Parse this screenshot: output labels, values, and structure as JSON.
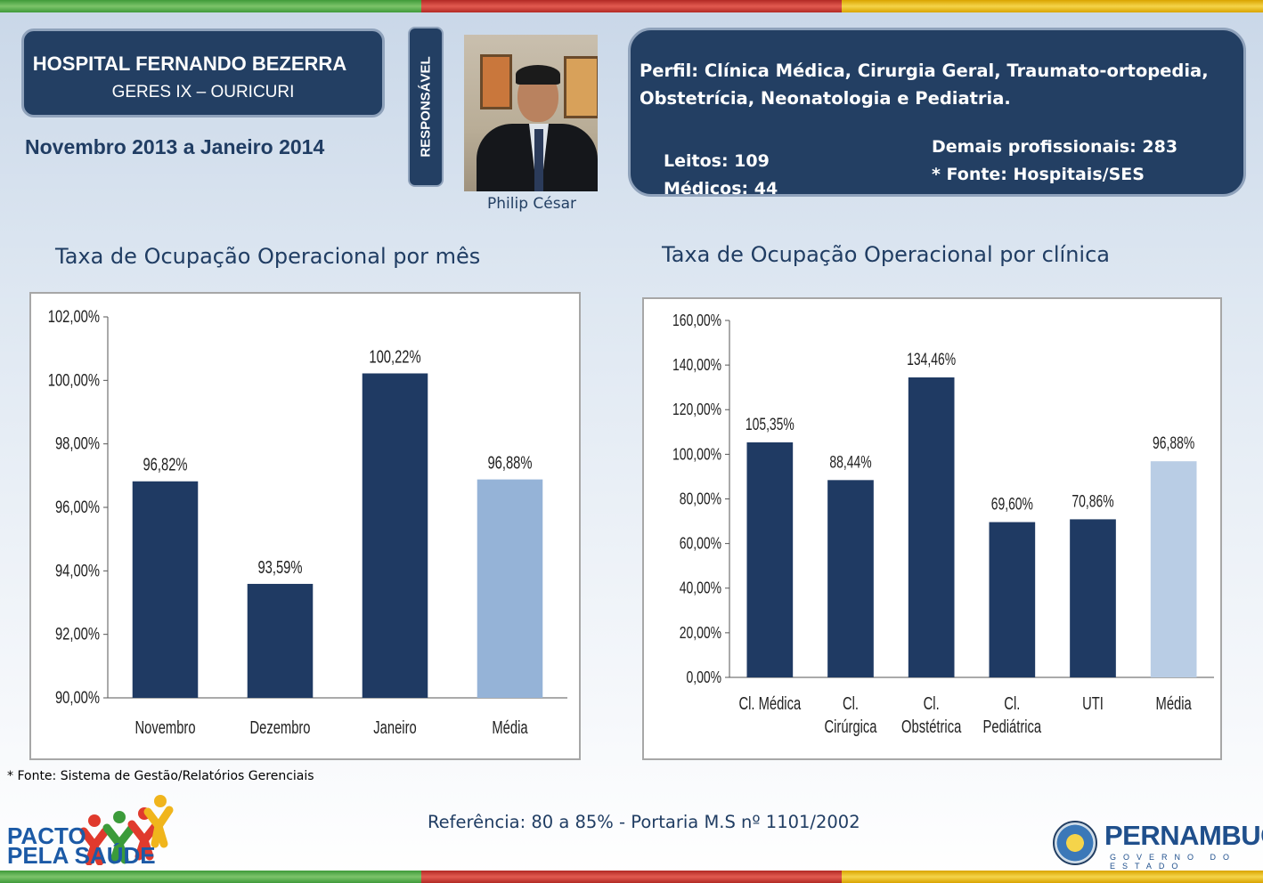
{
  "header": {
    "hospital_name": "HOSPITAL FERNANDO BEZERRA",
    "regional": "GERES IX – OURICURI",
    "period": "Novembro 2013 a Janeiro 2014",
    "responsavel_label": "RESPONSÁVEL",
    "responsavel_name": "Philip César"
  },
  "profile": {
    "perfil": "Perfil: Clínica Médica, Cirurgia Geral, Traumato-ortopedia, Obstetrícia, Neonatologia e Pediatria.",
    "leitos": "Leitos: 109",
    "medicos": "Médicos: 44",
    "demais": "Demais profissionais: 283",
    "fonte": "* Fonte: Hospitais/SES"
  },
  "titles": {
    "monthly": "Taxa de Ocupação Operacional por mês",
    "clinic": "Taxa de Ocupação Operacional por clínica"
  },
  "footer": {
    "source": "* Fonte: Sistema de Gestão/Relatórios Gerenciais",
    "reference": "Referência: 80 a 85% - Portaria M.S nº 1101/2002",
    "pacto_line1": "PACTO",
    "pacto_line2": "PELA SAÚDE",
    "pe_name": "PERNAMBUCO",
    "pe_sub": "GOVERNO DO ESTADO"
  },
  "colors": {
    "dark_bar": "#1f3a63",
    "light_bar_month": "#95b3d7",
    "light_bar_clinic": "#b9cde5"
  },
  "chart_data": [
    {
      "type": "bar",
      "title": "Taxa de Ocupação Operacional por mês",
      "categories": [
        [
          "Novembro"
        ],
        [
          "Dezembro"
        ],
        [
          "Janeiro"
        ],
        [
          "Média"
        ]
      ],
      "values": [
        96.82,
        93.59,
        100.22,
        96.88
      ],
      "labels": [
        "96,82%",
        "93,59%",
        "100,22%",
        "96,88%"
      ],
      "highlight": [
        false,
        false,
        false,
        true
      ],
      "ylim": [
        90,
        102
      ],
      "ticks": [
        90,
        92,
        94,
        96,
        98,
        100,
        102
      ],
      "tick_labels": [
        "90,00%",
        "92,00%",
        "94,00%",
        "96,00%",
        "98,00%",
        "100,00%",
        "102,00%"
      ],
      "xlabel": "",
      "ylabel": "",
      "grid": false
    },
    {
      "type": "bar",
      "title": "Taxa de Ocupação Operacional por clínica",
      "categories": [
        [
          "Cl. Médica"
        ],
        [
          "Cl.",
          "Cirúrgica"
        ],
        [
          "Cl.",
          "Obstétrica"
        ],
        [
          "Cl.",
          "Pediátrica"
        ],
        [
          "UTI"
        ],
        [
          "Média"
        ]
      ],
      "values": [
        105.35,
        88.44,
        134.46,
        69.6,
        70.86,
        96.88
      ],
      "labels": [
        "105,35%",
        "88,44%",
        "134,46%",
        "69,60%",
        "70,86%",
        "96,88%"
      ],
      "highlight": [
        false,
        false,
        false,
        false,
        false,
        true
      ],
      "ylim": [
        0,
        160
      ],
      "ticks": [
        0,
        20,
        40,
        60,
        80,
        100,
        120,
        140,
        160
      ],
      "tick_labels": [
        "0,00%",
        "20,00%",
        "40,00%",
        "60,00%",
        "80,00%",
        "100,00%",
        "120,00%",
        "140,00%",
        "160,00%"
      ],
      "xlabel": "",
      "ylabel": "",
      "grid": false
    }
  ]
}
